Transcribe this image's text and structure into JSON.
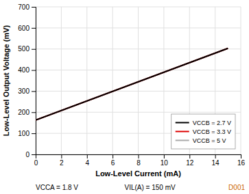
{
  "chart_data": {
    "type": "line",
    "xlabel": "Low-Level Current (mA)",
    "ylabel": "Low-Level Output Voltage (mV)",
    "x": [
      0,
      15
    ],
    "series": [
      {
        "name": "VCCB = 2.7 V",
        "color": "#000000",
        "values": [
          163,
          503
        ]
      },
      {
        "name": "VCCB = 3.3 V",
        "color": "#dd0000",
        "values": [
          163,
          503
        ]
      },
      {
        "name": "VCCB = 5 V",
        "color": "#aaaaaa",
        "values": [
          163,
          503
        ]
      }
    ],
    "xlim": [
      0,
      16
    ],
    "ylim": [
      0,
      700
    ],
    "xticks": [
      0,
      2,
      4,
      6,
      8,
      10,
      12,
      14,
      16
    ],
    "yticks": [
      0,
      100,
      200,
      300,
      400,
      500,
      600,
      700
    ],
    "grid": true,
    "legend": "lower right",
    "annotations": [
      {
        "text": "VCCA = 1.8 V"
      },
      {
        "text": "VIL(A) = 150 mV"
      },
      {
        "text": "D001",
        "color": "#cc6600"
      }
    ]
  }
}
